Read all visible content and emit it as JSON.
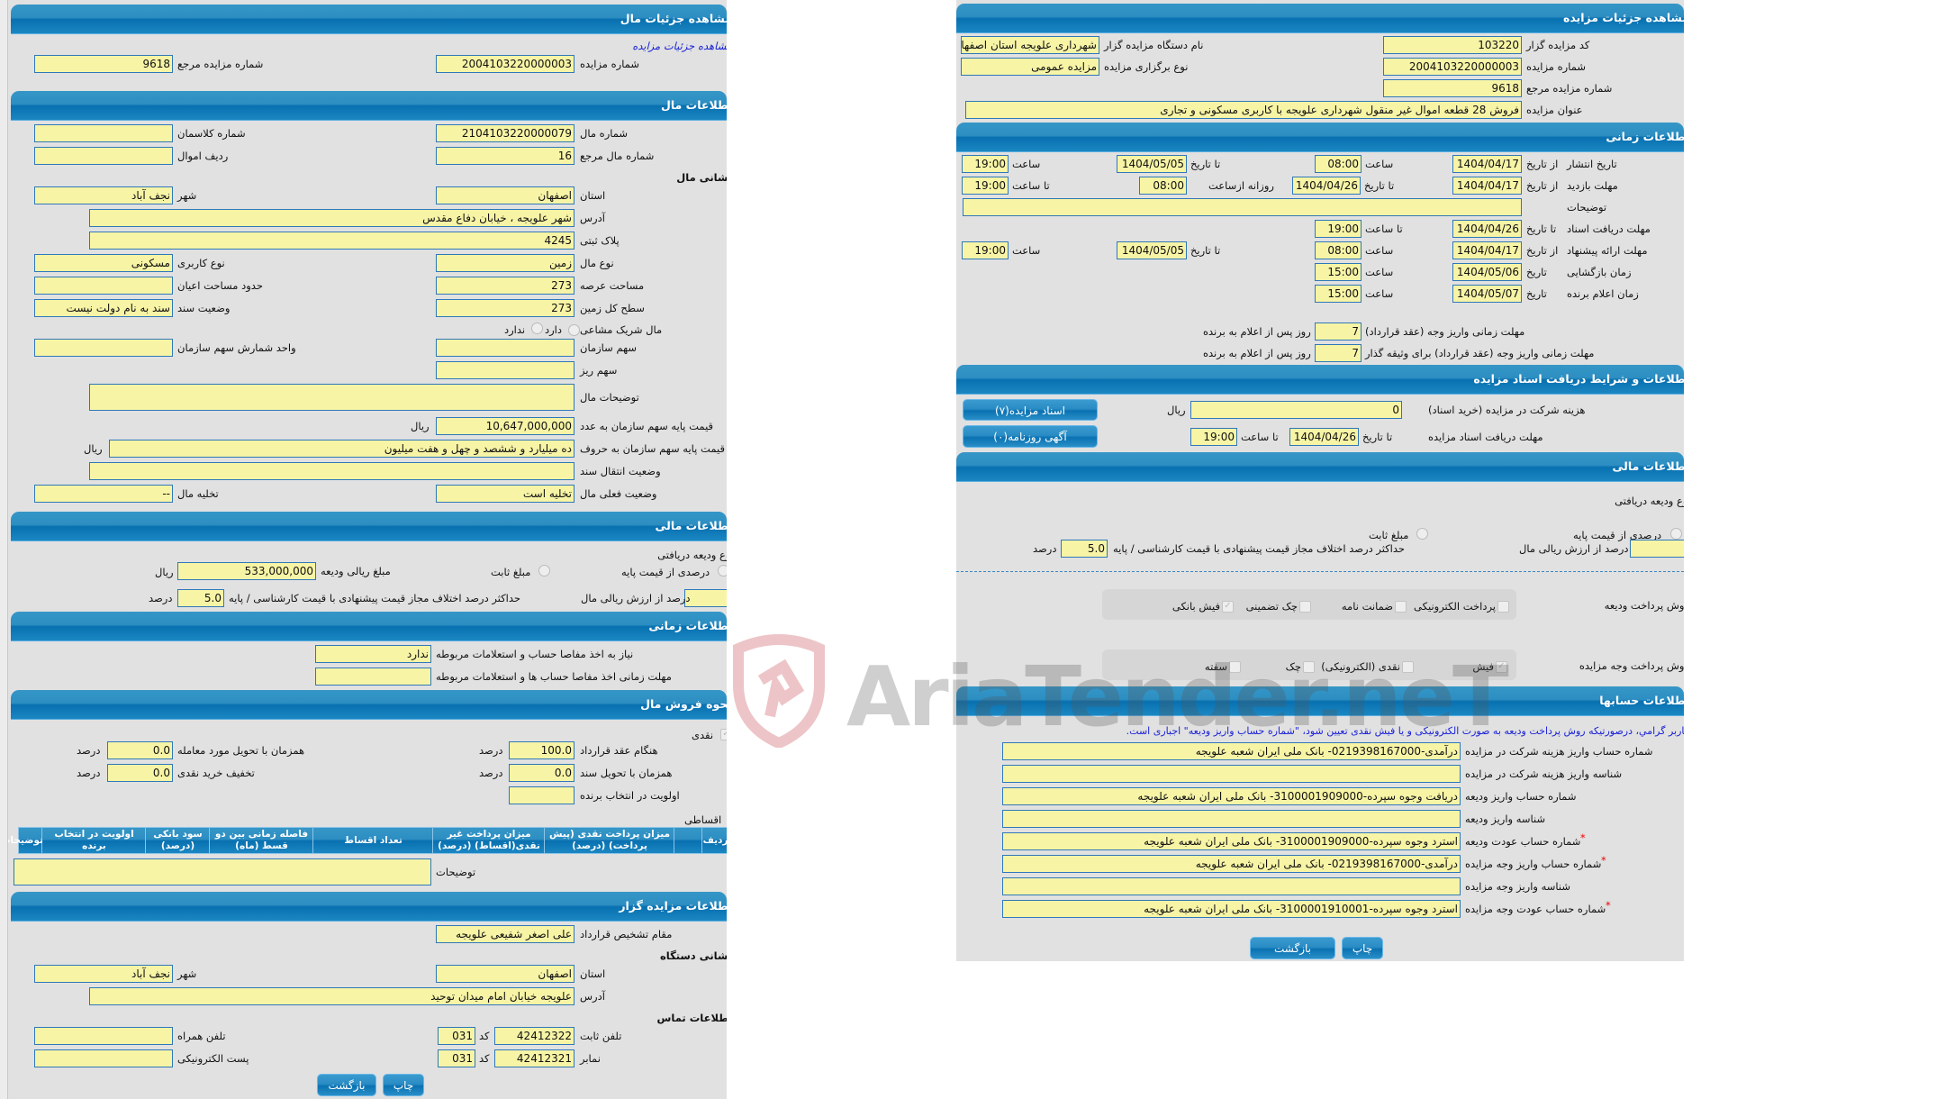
{
  "left": {
    "title": "مشاهده جزئیات مال",
    "auction_link": "مشاهده جزئیات مزایده",
    "auction_no": {
      "label": "شماره مزایده",
      "value": "2004103220000003"
    },
    "ref_auction_no": {
      "label": "شماره مزایده مرجع",
      "value": "9618"
    },
    "property_section": "اطلاعات مال",
    "property_no": {
      "label": "شماره مال",
      "value": "2104103220000079"
    },
    "class_no": {
      "label": "شماره کلاسمان",
      "value": ""
    },
    "property_ref_no": {
      "label": "شماره مال مرجع",
      "value": "16"
    },
    "asset_row": {
      "label": "ردیف اموال",
      "value": ""
    },
    "address_heading": "نشانی مال",
    "province": {
      "label": "استان",
      "value": "اصفهان"
    },
    "city": {
      "label": "شهر",
      "value": "نجف آباد"
    },
    "address": {
      "label": "آدرس",
      "value": "شهر علویجه ، خیابان دفاع مقدس"
    },
    "plaque": {
      "label": "پلاک ثبتی",
      "value": "4245"
    },
    "property_type": {
      "label": "نوع مال",
      "value": "زمین"
    },
    "usage_type": {
      "label": "نوع کاربری",
      "value": "مسکونی"
    },
    "land_area": {
      "label": "مساحت عرصه",
      "value": "273"
    },
    "building_area": {
      "label": "حدود مساحت اعیان",
      "value": ""
    },
    "total_land": {
      "label": "سطح کل زمین",
      "value": "273"
    },
    "deed_status": {
      "label": "وضعیت سند",
      "value": "سند به نام دولت نیست"
    },
    "shared": {
      "label": "مال شریک مشاعی",
      "yes": "دارد",
      "no": "ندارد"
    },
    "org_share": {
      "label": "سهم سازمان",
      "value": ""
    },
    "share_unit": {
      "label": "واحد شمارش سهم سازمان",
      "value": ""
    },
    "sub_share": {
      "label": "سهم ریز",
      "value": ""
    },
    "description": {
      "label": "توضیحات مال",
      "value": ""
    },
    "base_price_num": {
      "label": "قیمت پایه سهم سازمان به عدد",
      "value": "10,647,000,000",
      "unit": "ریال"
    },
    "base_price_words": {
      "label": "قیمت پایه سهم سازمان به حروف",
      "value": "ده میلیارد و ششصد و چهل و هفت میلیون",
      "unit": "ریال"
    },
    "deed_transfer": {
      "label": "وضعیت انتقال سند",
      "value": ""
    },
    "current_status": {
      "label": "وضعیت فعلی مال",
      "value": "تخلیه است"
    },
    "eviction": {
      "label": "تخلیه مال",
      "value": "--"
    },
    "financial_section": "اطلاعات مالی",
    "deposit_type_label": "نوع ودیعه دریافتی",
    "deposit_percent_option": "درصدی از قیمت پایه",
    "deposit_fixed_option": "مبلغ ثابت",
    "deposit_amount": {
      "label": "مبلغ ریالی ودیعه",
      "value": "533,000,000",
      "unit": "ریال"
    },
    "deposit_percent": {
      "label": "درصد از ارزش ریالی مال",
      "value": ""
    },
    "max_diff": {
      "label": "حداکثر درصد اختلاف مجاز قیمت پیشنهادی با قیمت کارشناسی / پایه",
      "value": "5.0",
      "unit": "درصد"
    },
    "time_section": "اطلاعات زمانی",
    "clearance_needed": {
      "label": "نیاز به اخذ مفاصا حساب و استعلامات مربوطه",
      "value": "ندارد"
    },
    "clearance_deadline": {
      "label": "مهلت زمانی اخذ مفاصا حساب ها و استعلامات مربوطه",
      "value": ""
    },
    "sale_section": "نحوه فروش مال",
    "cash_label": "نقدی",
    "on_contract": {
      "label": "هنگام عقد قرارداد",
      "value": "100.0",
      "unit": "درصد"
    },
    "on_delivery": {
      "label": "همزمان با تحویل مورد معامله",
      "value": "0.0",
      "unit": "درصد"
    },
    "on_deed": {
      "label": "همزمان با تحویل سند",
      "value": "0.0",
      "unit": "درصد"
    },
    "cash_discount": {
      "label": "تخفیف خرید نقدی",
      "value": "0.0",
      "unit": "درصد"
    },
    "winner_priority": {
      "label": "اولویت در انتخاب برنده",
      "value": ""
    },
    "installment_label": "اقساطی",
    "installment_columns": [
      "ردیف",
      "",
      "میزان پرداخت نقدی (پیش پرداخت) (درصد)",
      "میزان پرداخت غیر نقدی(اقساط) (درصد)",
      "تعداد اقساط",
      "فاصله زمانی بین دو قسط (ماه)",
      "سود بانکی (درصد)",
      "اولویت در انتخاب برنده",
      "توضیحات"
    ],
    "sale_notes": {
      "label": "توضیحات",
      "value": ""
    },
    "auctioneer_section": "اطلاعات مزایده گزار",
    "authority": {
      "label": "مقام تشخیص قرارداد",
      "value": "علی اصغر شفیعی علویجه"
    },
    "org_address_heading": "نشانی دستگاه",
    "org_province": {
      "label": "استان",
      "value": "اصفهان"
    },
    "org_city": {
      "label": "شهر",
      "value": "نجف آباد"
    },
    "org_address": {
      "label": "آدرس",
      "value": "علویجه خیابان امام میدان توحید"
    },
    "contact_heading": "اطلاعات تماس",
    "phone": {
      "label": "تلفن ثابت",
      "value": "42412322",
      "code_label": "کد",
      "code": "031"
    },
    "fax": {
      "label": "نمابر",
      "value": "42412321",
      "code_label": "کد",
      "code": "031"
    },
    "mobile": {
      "label": "تلفن همراه",
      "value": ""
    },
    "email": {
      "label": "پست الکترونیکی",
      "value": ""
    },
    "print_button": "چاپ",
    "back_button": "بازگشت"
  },
  "right": {
    "title": "مشاهده جزئیات مزایده",
    "auctioneer_code": {
      "label": "کد مزایده گزار",
      "value": "103220"
    },
    "org_name": {
      "label": "نام دستگاه مزایده گزار",
      "value": "شهرداری علویجه استان اصفهان"
    },
    "auction_no": {
      "label": "شماره مزایده",
      "value": "2004103220000003"
    },
    "holding_type": {
      "label": "نوع برگزاری مزایده",
      "value": "مزایده عمومی"
    },
    "ref_no": {
      "label": "شماره مزایده مرجع",
      "value": "9618"
    },
    "auction_title": {
      "label": "عنوان مزایده",
      "value": "فروش 28 قطعه اموال غیر منقول شهرداری علویجه با کاربری مسکونی و تجاری"
    },
    "time_section": "اطلاعات زمانی",
    "lbl_from_date": "از تاریخ",
    "lbl_to_date": "تا تاریخ",
    "lbl_date": "تاریخ",
    "lbl_time": "ساعت",
    "lbl_to_time": "تا ساعت",
    "lbl_daily_from": "روزانه ازساعت",
    "publish": {
      "label": "تاریخ انتشار",
      "from": "1404/04/17",
      "from_time": "08:00",
      "to": "1404/05/05",
      "to_time": "19:00"
    },
    "visit": {
      "label": "مهلت بازدید",
      "from": "1404/04/17",
      "to": "1404/04/26",
      "daily_from": "08:00",
      "to_time": "19:00"
    },
    "time_notes": {
      "label": "توضیحات",
      "value": ""
    },
    "doc_receive": {
      "label": "مهلت دریافت اسناد",
      "to": "1404/04/26",
      "to_time": "19:00"
    },
    "bid_submit": {
      "label": "مهلت ارائه پیشنهاد",
      "from": "1404/04/17",
      "from_time": "08:00",
      "to": "1404/05/05",
      "to_time": "19:00"
    },
    "opening": {
      "label": "زمان بازگشایی",
      "date": "1404/05/06",
      "time": "15:00"
    },
    "winner_announce": {
      "label": "زمان اعلام برنده",
      "date": "1404/05/07",
      "time": "15:00"
    },
    "pay_deadline": {
      "label": "مهلت زمانی واریز وجه (عقد قرارداد)",
      "value": "7",
      "suffix": "روز پس از اعلام به برنده"
    },
    "pay_deadline_collateral": {
      "label": "مهلت زمانی واریز وجه (عقد قرارداد) برای وثیقه گذار",
      "value": "7",
      "suffix": "روز پس از اعلام به برنده"
    },
    "docs_section": "اطلاعات و شرایط دریافت اسناد مزایده",
    "participation_fee": {
      "label": "هزینه شرکت در مزایده (خرید اسناد)",
      "value": "0",
      "unit": "ریال"
    },
    "docs_deadline": {
      "label": "مهلت دریافت اسناد مزایده",
      "to_label": "تا تاریخ",
      "date": "1404/04/26",
      "time_label": "تا ساعت",
      "time": "19:00"
    },
    "docs_button": "اسناد مزایده(۷)",
    "newspaper_button": "آگهی روزنامه(۰)",
    "financial_section": "اطلاعات مالی",
    "deposit_type_label": "نوع ودیعه دریافتی",
    "deposit_percent_option": "درصدی از قیمت پایه",
    "deposit_fixed_option": "مبلغ ثابت",
    "deposit_percent": {
      "label": "درصد از ارزش ریالی مال",
      "value": ""
    },
    "max_diff": {
      "label": "حداکثر درصد اختلاف مجاز قیمت پیشنهادی با قیمت کارشناسی / پایه",
      "value": "5.0",
      "unit": "درصد"
    },
    "deposit_method": {
      "label": "روش پرداخت ودیعه",
      "options": [
        {
          "label": "پرداخت الکترونیکی",
          "checked": false
        },
        {
          "label": "ضمانت نامه",
          "checked": false
        },
        {
          "label": "چک تضمینی",
          "checked": false
        },
        {
          "label": "فیش بانکی",
          "checked": true
        }
      ]
    },
    "payment_method": {
      "label": "روش پرداخت وجه مزایده",
      "options": [
        {
          "label": "فیش",
          "checked": true
        },
        {
          "label": "نقدی (الکترونیکی)",
          "checked": false
        },
        {
          "label": "چک",
          "checked": false
        },
        {
          "label": "سفته",
          "checked": false
        }
      ]
    },
    "accounts_section": "اطلاعات حسابها",
    "accounts_notice": "کاربر گرامي، درصورتيکه روش پرداخت وديعه به صورت الکترونيکی و يا فيش نقدی تعيين شود، \"شماره حساب واريز وديعه\" اجباری است.",
    "accounts": [
      {
        "label": "شماره حساب واریز هزینه شرکت در مزایده",
        "value": "درآمدی-0219398167000- بانک ملی ایران شعبه علویجه",
        "required": false
      },
      {
        "label": "شناسه واریز هزینه شرکت در مزایده",
        "value": "",
        "required": false
      },
      {
        "label": "شماره حساب واریز ودیعه",
        "value": "دریافت وجوه سپرده-3100001909000- بانک ملی ایران شعبه علویجه",
        "required": false
      },
      {
        "label": "شناسه واریز ودیعه",
        "value": "",
        "required": false
      },
      {
        "label": "شماره حساب عودت ودیعه",
        "value": "استرد وجوه سپرده-3100001909000- بانک ملی ایران شعبه علویجه",
        "required": true
      },
      {
        "label": "شماره حساب واریز وجه مزایده",
        "value": "درآمدی-0219398167000- بانک ملی ایران شعبه علویجه",
        "required": true
      },
      {
        "label": "شناسه واریز وجه مزایده",
        "value": "",
        "required": false
      },
      {
        "label": "شماره حساب عودت وجه مزایده",
        "value": "استرد وجوه سپرده-3100001910001- بانک ملی ایران شعبه علویجه",
        "required": true
      }
    ],
    "required_mark": "*",
    "print_button": "چاپ",
    "back_button": "بازگشت"
  },
  "watermark": "AriaTender.neT",
  "colors": {
    "header": "#0870b0",
    "input_bg": "#f7f4a6",
    "input_border": "#2f78b8",
    "panel_bg": "#e1e1e1",
    "link": "#1a22d8"
  }
}
